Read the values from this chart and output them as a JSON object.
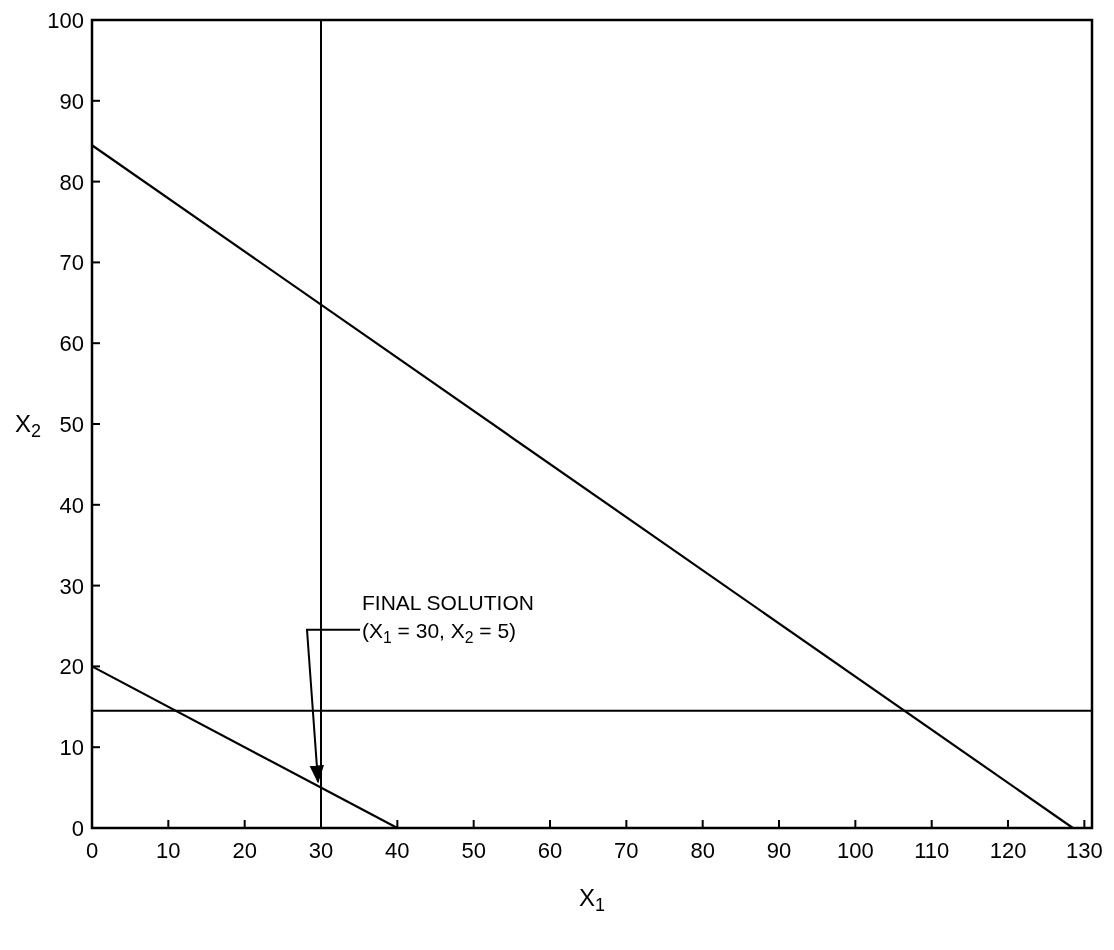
{
  "chart_data": {
    "type": "line",
    "xlabel": "X$_{1}$",
    "ylabel": "X$_{2}$",
    "xlim": [
      0,
      131
    ],
    "xticks": [
      0,
      10,
      20,
      30,
      40,
      50,
      60,
      70,
      80,
      90,
      100,
      110,
      120,
      130
    ],
    "ylim": [
      0,
      100
    ],
    "yticks": [
      0,
      10,
      20,
      30,
      40,
      50,
      60,
      70,
      80,
      90,
      100
    ],
    "series": [
      {
        "color": "#000000",
        "x": [
          0,
          128.5
        ],
        "values": [
          84.5,
          0
        ]
      },
      {
        "color": "#000000",
        "x": [
          0,
          40
        ],
        "values": [
          20,
          0
        ]
      }
    ],
    "ref_lines": [
      {
        "axis": "x",
        "value": 30,
        "color": "#000000"
      },
      {
        "axis": "y",
        "value": 14.5,
        "color": "#000000"
      }
    ],
    "annotations": [
      {
        "text": "FINAL SOLUTION\n(X$_{1}$ = 30, X$_{2}$ = 5)",
        "x": 30,
        "y": 5
      }
    ],
    "grid": false,
    "marker": "none",
    "line_style": "solid"
  }
}
